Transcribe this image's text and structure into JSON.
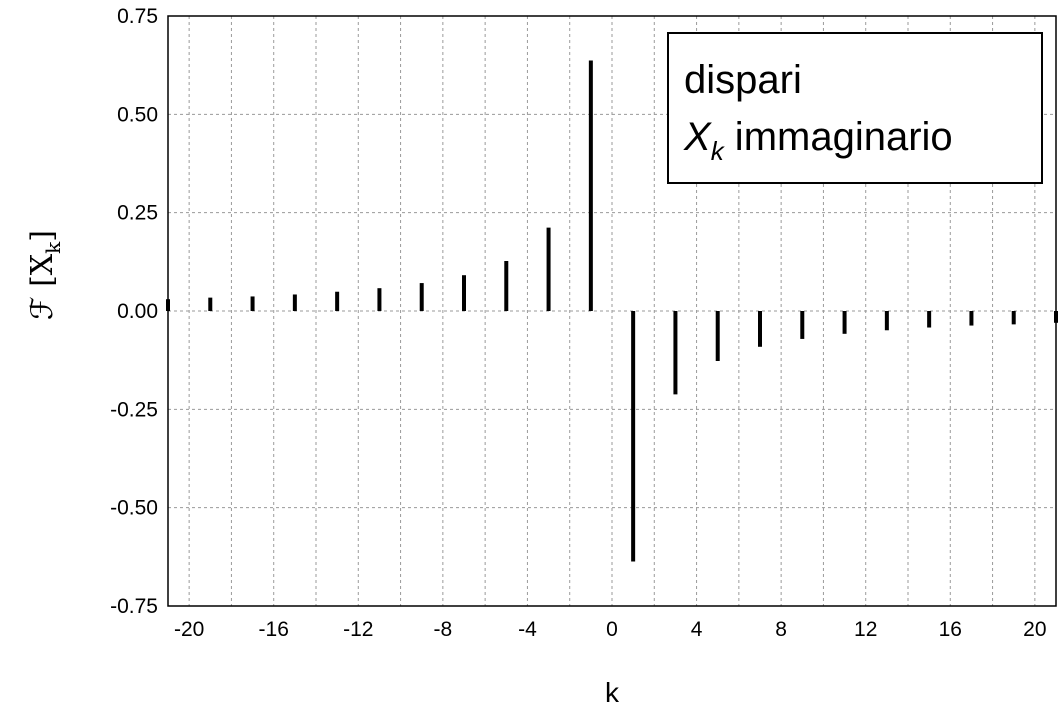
{
  "chart_data": {
    "type": "bar",
    "xlabel": "k",
    "ylabel": "ℱ [X",
    "ylabel_sub": "k",
    "ylabel_close": "]",
    "xlim": [
      -21,
      21
    ],
    "ylim": [
      -0.75,
      0.75
    ],
    "xticks": [
      -20,
      -16,
      -12,
      -8,
      -4,
      0,
      4,
      8,
      12,
      16,
      20
    ],
    "yticks": [
      "0.75",
      "0.50",
      "0.25",
      "0.00",
      "-0.25",
      "-0.50",
      "-0.75"
    ],
    "ytick_values": [
      0.75,
      0.5,
      0.25,
      0,
      -0.25,
      -0.5,
      -0.75
    ],
    "grid": true,
    "legend": {
      "position": "top-right",
      "line1": "dispari",
      "line2_var": "X",
      "line2_sub": "k",
      "line2_rest": " immaginario"
    },
    "series": [
      {
        "x": [
          -21,
          -19,
          -17,
          -15,
          -13,
          -11,
          -9,
          -7,
          -5,
          -3,
          -1,
          1,
          3,
          5,
          7,
          9,
          11,
          13,
          15,
          17,
          19,
          21
        ],
        "values": [
          0.03,
          0.034,
          0.037,
          0.042,
          0.049,
          0.058,
          0.071,
          0.091,
          0.127,
          0.212,
          0.637,
          -0.637,
          -0.212,
          -0.127,
          -0.091,
          -0.071,
          -0.058,
          -0.049,
          -0.042,
          -0.037,
          -0.034,
          -0.03
        ]
      }
    ]
  }
}
